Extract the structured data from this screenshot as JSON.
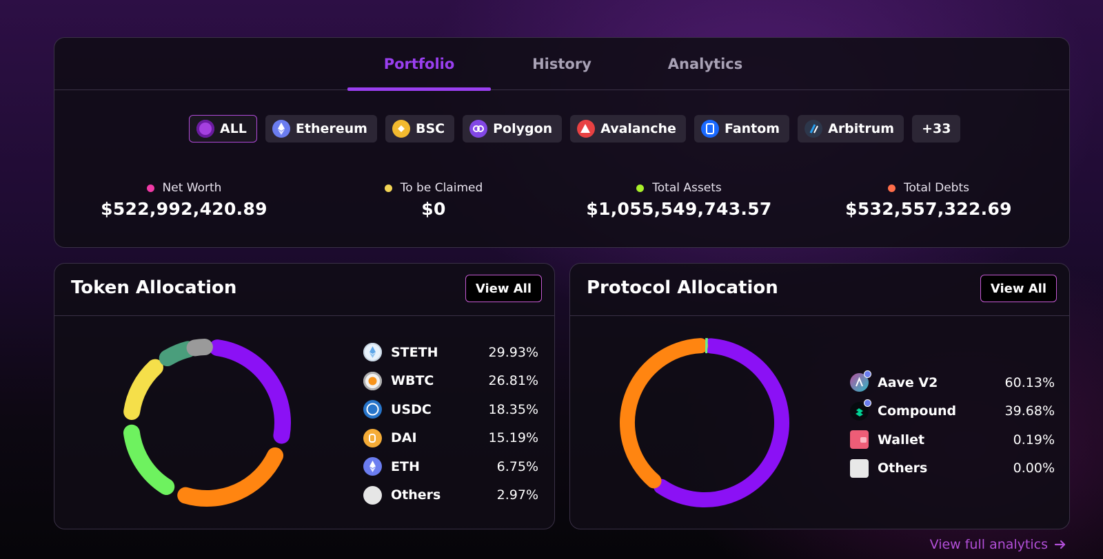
{
  "tabs": [
    {
      "label": "Portfolio",
      "active": true
    },
    {
      "label": "History",
      "active": false
    },
    {
      "label": "Analytics",
      "active": false
    }
  ],
  "chains": [
    {
      "label": "ALL",
      "icon": "all-chains-icon",
      "color": "#a540e0",
      "active": true
    },
    {
      "label": "Ethereum",
      "icon": "ethereum-icon",
      "color": "#6b7df0"
    },
    {
      "label": "BSC",
      "icon": "bsc-icon",
      "color": "#f3ba2f"
    },
    {
      "label": "Polygon",
      "icon": "polygon-icon",
      "color": "#8247e5"
    },
    {
      "label": "Avalanche",
      "icon": "avalanche-icon",
      "color": "#e84142"
    },
    {
      "label": "Fantom",
      "icon": "fantom-icon",
      "color": "#1969ff"
    },
    {
      "label": "Arbitrum",
      "icon": "arbitrum-icon",
      "color": "#2d374b"
    },
    {
      "label": "+33"
    }
  ],
  "stats": {
    "net_worth": {
      "label": "Net Worth",
      "value": "$522,992,420.89",
      "color": "#f03aa6"
    },
    "to_be_claimed": {
      "label": "To be Claimed",
      "value": "$0",
      "color": "#f2d455"
    },
    "total_assets": {
      "label": "Total Assets",
      "value": "$1,055,549,743.57",
      "color": "#a9ef2a"
    },
    "total_debts": {
      "label": "Total Debts",
      "value": "$532,557,322.69",
      "color": "#ff6e4a"
    }
  },
  "token_allocation": {
    "title": "Token Allocation",
    "view_all": "View All",
    "items": [
      {
        "name": "STETH",
        "pct": "29.93%",
        "value": 29.93,
        "icon": "steth-icon",
        "color": "#8b11f5"
      },
      {
        "name": "WBTC",
        "pct": "26.81%",
        "value": 26.81,
        "icon": "wbtc-icon",
        "color": "#ff8511"
      },
      {
        "name": "USDC",
        "pct": "18.35%",
        "value": 18.35,
        "icon": "usdc-icon",
        "color": "#6ef25f"
      },
      {
        "name": "DAI",
        "pct": "15.19%",
        "value": 15.19,
        "icon": "dai-icon",
        "color": "#f5df4a"
      },
      {
        "name": "ETH",
        "pct": "6.75%",
        "value": 6.75,
        "icon": "eth-icon",
        "color": "#4a9e7c"
      },
      {
        "name": "Others",
        "pct": "2.97%",
        "value": 2.97,
        "icon": "others-icon",
        "color": "#9a9a9a"
      }
    ]
  },
  "protocol_allocation": {
    "title": "Protocol Allocation",
    "view_all": "View All",
    "items": [
      {
        "name": "Aave V2",
        "pct": "60.13%",
        "value": 60.13,
        "icon": "aave-icon",
        "color": "#8b11f5"
      },
      {
        "name": "Compound",
        "pct": "39.68%",
        "value": 39.68,
        "icon": "compound-icon",
        "color": "#ff8511"
      },
      {
        "name": "Wallet",
        "pct": "0.19%",
        "value": 0.19,
        "icon": "wallet-icon",
        "color": "#6ef28a"
      },
      {
        "name": "Others",
        "pct": "0.00%",
        "value": 0.0,
        "icon": "others-icon",
        "color": "#e8e8e8"
      }
    ]
  },
  "footer_link": "View full analytics"
}
